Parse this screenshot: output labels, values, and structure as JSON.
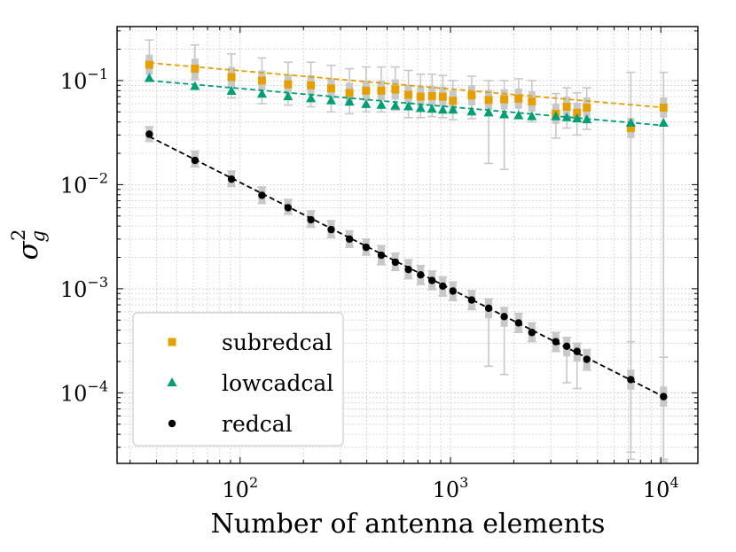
{
  "chart_data": {
    "type": "scatter",
    "xscale": "log",
    "yscale": "log",
    "xlim": [
      26,
      15000
    ],
    "ylim": [
      2.1e-05,
      0.33
    ],
    "xlabel": "Number of antenna elements",
    "ylabel": "σ",
    "ylabel_super": "2",
    "ylabel_sub": "g",
    "grid": true,
    "legend_position": "bottom-left",
    "x_ticks": [
      {
        "value": 100,
        "base": "10",
        "exp": "2"
      },
      {
        "value": 1000,
        "base": "10",
        "exp": "3"
      },
      {
        "value": 10000,
        "base": "10",
        "exp": "4"
      }
    ],
    "y_ticks": [
      {
        "value": 0.0001,
        "base": "10",
        "exp": "−4"
      },
      {
        "value": 0.001,
        "base": "10",
        "exp": "−3"
      },
      {
        "value": 0.01,
        "base": "10",
        "exp": "−2"
      },
      {
        "value": 0.1,
        "base": "10",
        "exp": "−1"
      }
    ],
    "series": [
      {
        "name": "subredcal",
        "marker": "square",
        "color": "#e69f00",
        "x": [
          37,
          61,
          91,
          127,
          169,
          217,
          271,
          331,
          397,
          469,
          547,
          631,
          721,
          817,
          919,
          1027,
          1261,
          1519,
          1801,
          2107,
          2437,
          3169,
          3571,
          3997,
          4447,
          7200,
          10300
        ],
        "y": [
          0.142,
          0.13,
          0.108,
          0.1,
          0.092,
          0.09,
          0.084,
          0.076,
          0.08,
          0.08,
          0.082,
          0.073,
          0.07,
          0.071,
          0.07,
          0.064,
          0.072,
          0.065,
          0.066,
          0.067,
          0.063,
          0.048,
          0.056,
          0.049,
          0.055,
          0.035,
          0.055
        ],
        "err_lo": [
          0.098,
          0.102,
          0.068,
          0.06,
          0.058,
          0.056,
          0.05,
          0.048,
          0.05,
          0.05,
          0.052,
          0.044,
          0.044,
          0.045,
          0.044,
          0.042,
          0.043,
          0.016,
          0.014,
          0.043,
          0.04,
          0.028,
          0.035,
          0.03,
          0.034,
          2.3e-05,
          2.3e-05
        ],
        "err_hi": [
          0.245,
          0.22,
          0.18,
          0.165,
          0.15,
          0.15,
          0.14,
          0.13,
          0.135,
          0.135,
          0.135,
          0.125,
          0.115,
          0.115,
          0.112,
          0.1,
          0.11,
          0.1,
          0.1,
          0.104,
          0.1,
          0.075,
          0.085,
          0.076,
          0.085,
          0.12,
          0.12
        ],
        "fit": {
          "x": [
            37,
            10300
          ],
          "y": [
            0.148,
            0.055
          ]
        }
      },
      {
        "name": "lowcadcal",
        "marker": "triangle",
        "color": "#009e73",
        "x": [
          37,
          61,
          91,
          127,
          169,
          217,
          271,
          331,
          397,
          469,
          547,
          631,
          721,
          817,
          919,
          1027,
          1261,
          1519,
          1801,
          2107,
          2437,
          3169,
          3571,
          3997,
          4447,
          7200,
          10300
        ],
        "y": [
          0.105,
          0.088,
          0.079,
          0.074,
          0.07,
          0.067,
          0.064,
          0.062,
          0.059,
          0.058,
          0.057,
          0.056,
          0.054,
          0.053,
          0.052,
          0.052,
          0.05,
          0.049,
          0.047,
          0.046,
          0.045,
          0.045,
          0.044,
          0.043,
          0.042,
          0.039,
          0.039
        ],
        "fit": {
          "x": [
            37,
            10300
          ],
          "y": [
            0.1,
            0.037
          ]
        }
      },
      {
        "name": "redcal",
        "marker": "circle",
        "color": "#000000",
        "x": [
          37,
          61,
          91,
          127,
          169,
          217,
          271,
          331,
          397,
          469,
          547,
          631,
          721,
          817,
          919,
          1027,
          1261,
          1519,
          1801,
          2107,
          2437,
          3169,
          3571,
          3997,
          4447,
          7200,
          10300
        ],
        "y": [
          0.0305,
          0.0171,
          0.0113,
          0.0079,
          0.006,
          0.0046,
          0.0037,
          0.003,
          0.0025,
          0.0021,
          0.0018,
          0.00153,
          0.00136,
          0.0012,
          0.00106,
          0.00095,
          0.00078,
          0.00065,
          0.00054,
          0.00047,
          0.00038,
          0.00031,
          0.00028,
          0.00025,
          0.00021,
          0.000134,
          9.2e-05
        ],
        "err_lo": [
          0.026,
          0.0148,
          0.0096,
          0.0066,
          0.0052,
          0.0039,
          0.0031,
          0.0025,
          0.0021,
          0.0017,
          0.0015,
          0.00125,
          0.0011,
          0.00098,
          0.00085,
          0.00077,
          0.00063,
          0.00018,
          0.00015,
          0.00038,
          0.00031,
          0.00025,
          0.000125,
          0.00011,
          0.000165,
          2.7e-05,
          2.2e-05
        ],
        "err_hi": [
          0.036,
          0.021,
          0.0135,
          0.0095,
          0.0072,
          0.0056,
          0.0045,
          0.0036,
          0.003,
          0.0026,
          0.0022,
          0.0019,
          0.00167,
          0.00148,
          0.0013,
          0.00116,
          0.00096,
          0.0008,
          0.00066,
          0.00058,
          0.00047,
          0.00038,
          0.00034,
          0.0003,
          0.00026,
          0.00031,
          0.00022
        ],
        "fit": {
          "x": [
            37,
            10300
          ],
          "y": [
            0.029,
            9.2e-05
          ]
        }
      }
    ]
  }
}
